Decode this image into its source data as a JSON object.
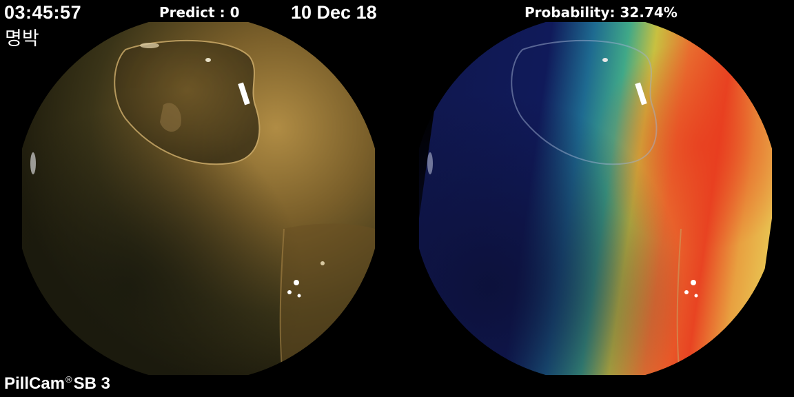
{
  "overlay": {
    "time": "03:45:57",
    "label": "명박",
    "predict": "Predict : 0",
    "date": "10 Dec 18",
    "probability": "Probability: 32.74%",
    "brand_name": "PillCam",
    "brand_mark": "®",
    "brand_model": "SB 3"
  },
  "colors": {
    "background": "#000000",
    "text": "#ffffff",
    "mucosa_light": "#a8843c",
    "mucosa_dark": "#1c1a0c",
    "heatmap_hot": "#e84020",
    "heatmap_mid": "#f0d040",
    "heatmap_cool": "#20a0a8",
    "heatmap_cold": "#101850"
  }
}
